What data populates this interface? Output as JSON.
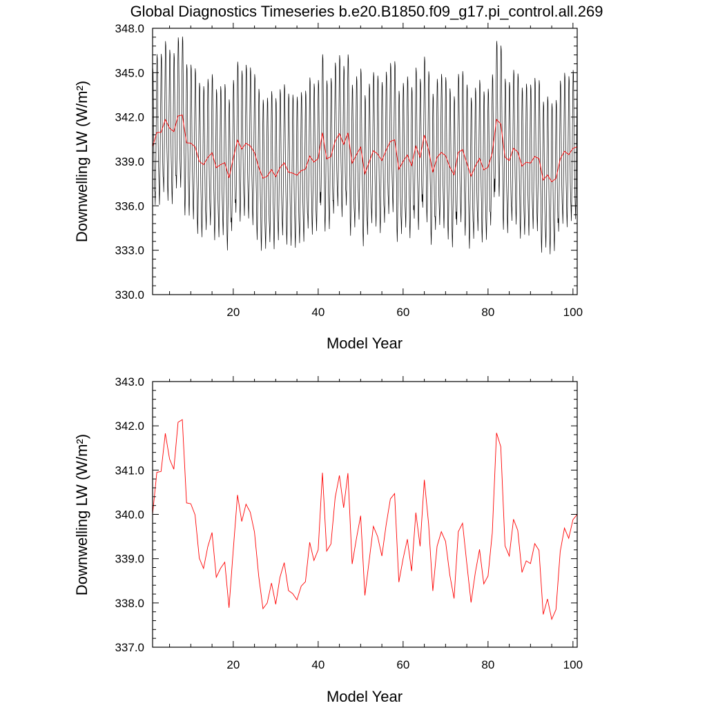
{
  "title": "Global Diagnostics Timeseries b.e20.B1850.f09_g17.pi_control.all.269",
  "colors": {
    "monthly": "#000000",
    "annual": "#ff0000",
    "frame": "#000000"
  },
  "chart_data": [
    {
      "type": "line",
      "ylabel": "Downwelling LW (W/m²)",
      "xlabel": "Model Year",
      "xlim": [
        1,
        101
      ],
      "ylim": [
        330,
        348
      ],
      "xticks": [
        20,
        40,
        60,
        80,
        100
      ],
      "xtick_labels": [
        "20",
        "40",
        "60",
        "80",
        "100"
      ],
      "yticks": [
        330,
        333,
        336,
        339,
        342,
        345,
        348
      ],
      "ytick_labels": [
        "330.0",
        "333.0",
        "336.0",
        "339.0",
        "342.0",
        "345.0",
        "348.0"
      ],
      "grid": false,
      "series": [
        {
          "kind": "monthly",
          "color": "#000000",
          "seasonal_cycle": [
            -4.0,
            -4.9,
            -3.5,
            -1.5,
            1.2,
            3.6,
            5.3,
            5.0,
            2.7,
            0.0,
            -1.9,
            -3.0
          ],
          "note_values": "monthly values = annual mean + seasonal cycle"
        },
        {
          "kind": "annual",
          "color": "#ff0000"
        }
      ]
    },
    {
      "type": "line",
      "ylabel": "Downwelling LW (W/m²)",
      "xlabel": "Model Year",
      "xlim": [
        1,
        101
      ],
      "ylim": [
        337,
        343
      ],
      "xticks": [
        20,
        40,
        60,
        80,
        100
      ],
      "xtick_labels": [
        "20",
        "40",
        "60",
        "80",
        "100"
      ],
      "yticks": [
        337,
        338,
        339,
        340,
        341,
        342,
        343
      ],
      "ytick_labels": [
        "337.0",
        "338.0",
        "339.0",
        "340.0",
        "341.0",
        "342.0",
        "343.0"
      ],
      "grid": false,
      "series": [
        {
          "kind": "annual",
          "color": "#ff0000"
        }
      ]
    }
  ],
  "annual_mean": {
    "years": [
      1,
      2,
      3,
      4,
      5,
      6,
      7,
      8,
      9,
      10,
      11,
      12,
      13,
      14,
      15,
      16,
      17,
      18,
      19,
      20,
      21,
      22,
      23,
      24,
      25,
      26,
      27,
      28,
      29,
      30,
      31,
      32,
      33,
      34,
      35,
      36,
      37,
      38,
      39,
      40,
      41,
      42,
      43,
      44,
      45,
      46,
      47,
      48,
      49,
      50,
      51,
      52,
      53,
      54,
      55,
      56,
      57,
      58,
      59,
      60,
      61,
      62,
      63,
      64,
      65,
      66,
      67,
      68,
      69,
      70,
      71,
      72,
      73,
      74,
      75,
      76,
      77,
      78,
      79,
      80,
      81,
      82,
      83,
      84,
      85,
      86,
      87,
      88,
      89,
      90,
      91,
      92,
      93,
      94,
      95,
      96,
      97,
      98,
      99,
      100,
      101
    ],
    "values": [
      340.0,
      340.95,
      340.97,
      341.83,
      341.25,
      341.02,
      342.08,
      342.14,
      340.26,
      340.24,
      339.99,
      339.01,
      338.78,
      339.27,
      339.59,
      338.58,
      338.78,
      338.92,
      337.89,
      339.2,
      340.44,
      339.84,
      340.23,
      340.05,
      339.6,
      338.6,
      337.87,
      338.0,
      338.45,
      337.97,
      338.58,
      338.91,
      338.28,
      338.21,
      338.07,
      338.38,
      338.48,
      339.37,
      338.96,
      339.2,
      340.94,
      339.17,
      339.33,
      340.38,
      340.88,
      340.15,
      340.93,
      338.88,
      339.45,
      339.97,
      338.17,
      338.95,
      339.73,
      339.5,
      339.06,
      339.76,
      340.35,
      340.47,
      338.47,
      339.0,
      339.44,
      338.72,
      340.04,
      339.28,
      340.78,
      339.79,
      338.27,
      339.28,
      339.61,
      339.39,
      338.63,
      338.1,
      339.61,
      339.8,
      338.89,
      338.01,
      338.68,
      339.21,
      338.43,
      338.61,
      339.58,
      341.84,
      341.53,
      339.29,
      339.06,
      339.89,
      339.64,
      338.69,
      338.95,
      338.89,
      339.34,
      339.19,
      337.74,
      338.09,
      337.63,
      337.85,
      339.16,
      339.69,
      339.46,
      339.88,
      340.0
    ]
  }
}
